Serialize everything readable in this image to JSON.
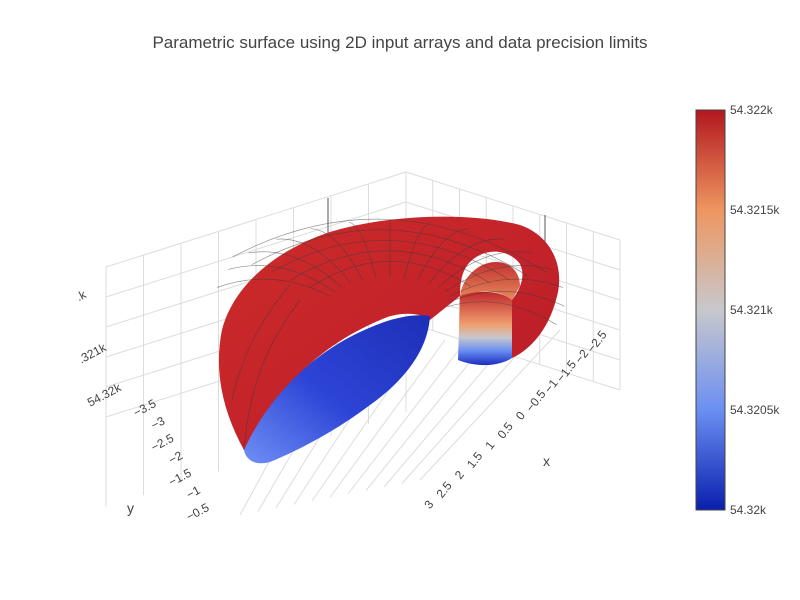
{
  "chart_data": {
    "type": "surface",
    "title": "Parametric surface using 2D input arrays and data precision limits",
    "surface_kind": "parametric spiral shell (partial torus)",
    "x_axis": {
      "label": "x",
      "ticks": [
        "−2.5",
        "−2",
        "−1.5",
        "−1",
        "−0.5",
        "0",
        "0.5",
        "1",
        "1.5",
        "2",
        "2.5",
        "3"
      ],
      "range": [
        -2.6,
        3.1
      ]
    },
    "y_axis": {
      "label": "y",
      "ticks": [
        "−3.5",
        "−3",
        "−2.5",
        "−2",
        "−1.5",
        "−1",
        "−0.5"
      ],
      "range": [
        -3.7,
        -0.3
      ]
    },
    "z_axis": {
      "label": "",
      "ticks": [
        ".k",
        ".321k",
        "54.32k"
      ],
      "range": [
        54320,
        54322
      ]
    },
    "colorbar": {
      "colorscale": [
        "#0a1fae",
        "#6b8ff2",
        "#c8c8cc",
        "#ee9660",
        "#b2171f"
      ],
      "tick_values": [
        54322,
        54321.5,
        54321,
        54320.5,
        54320
      ],
      "ticks": [
        "54.322k",
        "54.3215k",
        "54.321k",
        "54.3205k",
        "54.32k"
      ],
      "range": [
        54320,
        54322
      ]
    },
    "colors": {
      "top": "#b2171f",
      "inner_rim": "#ee9660",
      "bottom": "#2338d0",
      "grid": "#d8d8d8",
      "mesh": "#3a3a3a"
    }
  }
}
